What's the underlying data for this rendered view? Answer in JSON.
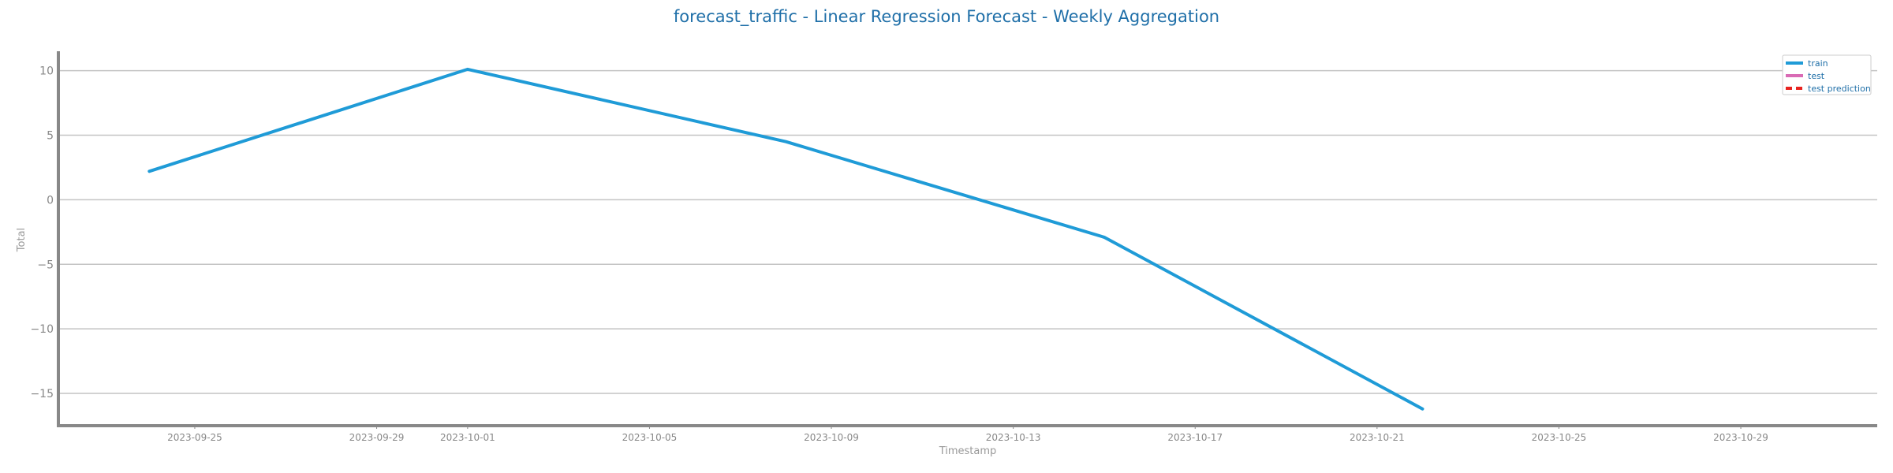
{
  "chart_data": {
    "type": "line",
    "title": "forecast_traffic - Linear Regression Forecast - Weekly Aggregation",
    "xlabel": "Timestamp",
    "ylabel": "Total",
    "x_is_date": true,
    "xlim": [
      "2023-09-22",
      "2023-11-01"
    ],
    "ylim": [
      -17.5,
      11.5
    ],
    "yticks": [
      10,
      5,
      0,
      -5,
      -10,
      -15
    ],
    "ytick_labels": [
      "10",
      "5",
      "0",
      "−5",
      "−10",
      "−15"
    ],
    "xticks": [
      "2023-09-25",
      "2023-09-29",
      "2023-10-01",
      "2023-10-05",
      "2023-10-09",
      "2023-10-13",
      "2023-10-17",
      "2023-10-21",
      "2023-10-25",
      "2023-10-29"
    ],
    "grid": "horizontal",
    "legend_position": "top-right",
    "series": [
      {
        "name": "train",
        "color": "#1f9bd7",
        "style": "solid",
        "x": [
          "2023-09-24",
          "2023-10-01",
          "2023-10-08",
          "2023-10-15",
          "2023-10-22"
        ],
        "y": [
          2.2,
          10.1,
          4.5,
          -2.9,
          -16.2
        ]
      },
      {
        "name": "test",
        "color": "#d96bb5",
        "style": "solid",
        "x": [],
        "y": []
      },
      {
        "name": "test prediction",
        "color": "#e8231f",
        "style": "dashed",
        "x": [],
        "y": []
      }
    ]
  }
}
